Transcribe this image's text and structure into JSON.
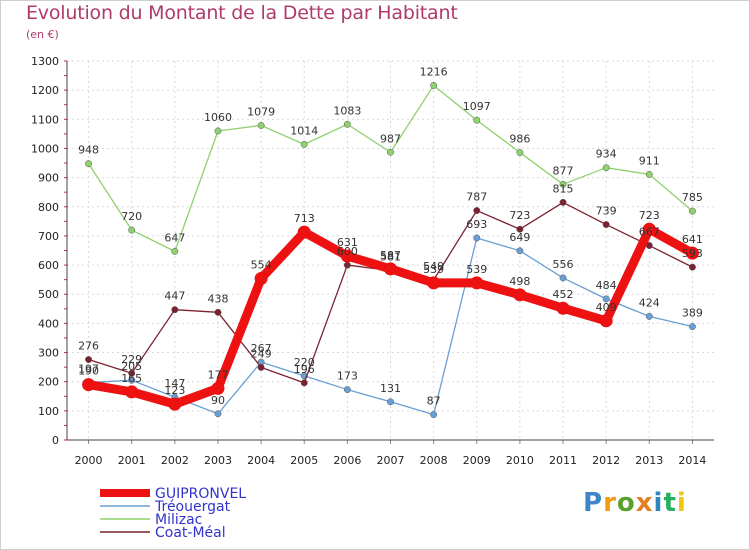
{
  "chart_data": {
    "type": "line",
    "title": "Evolution du Montant de la Dette par Habitant",
    "subtitle": "(en €)",
    "x": [
      "2000",
      "2001",
      "2002",
      "2003",
      "2004",
      "2005",
      "2006",
      "2007",
      "2008",
      "2009",
      "2010",
      "2011",
      "2012",
      "2013",
      "2014"
    ],
    "ylim": [
      0,
      1300
    ],
    "yticks": [
      0,
      100,
      200,
      300,
      400,
      500,
      600,
      700,
      800,
      900,
      1000,
      1100,
      1200,
      1300
    ],
    "grid": true,
    "legend_position": "bottom-left",
    "series": [
      {
        "name": "GUIPRONVEL",
        "color": "#ee1111",
        "values": [
          190,
          165,
          123,
          177,
          554,
          713,
          631,
          587,
          539,
          539,
          498,
          452,
          409,
          723,
          641
        ]
      },
      {
        "name": "Tréouergat",
        "color": "#6a9fd4",
        "values": [
          197,
          205,
          147,
          90,
          267,
          220,
          173,
          131,
          87,
          693,
          649,
          556,
          484,
          424,
          389
        ]
      },
      {
        "name": "Milizac",
        "color": "#8fd16f",
        "values": [
          948,
          720,
          647,
          1060,
          1079,
          1014,
          1083,
          987,
          1216,
          1097,
          986,
          877,
          934,
          911,
          785
        ]
      },
      {
        "name": "Coat-Méal",
        "color": "#7a2230",
        "values": [
          276,
          229,
          447,
          438,
          249,
          196,
          600,
          581,
          549,
          787,
          723,
          815,
          739,
          667,
          593
        ]
      }
    ]
  },
  "logo": {
    "letters": [
      "P",
      "r",
      "o",
      "x",
      "i",
      "t",
      "i"
    ],
    "colors": [
      "#3b86c6",
      "#f39c12",
      "#5aa02c",
      "#e67e22",
      "#2e86c1",
      "#27ae60",
      "#f1c40f"
    ]
  }
}
